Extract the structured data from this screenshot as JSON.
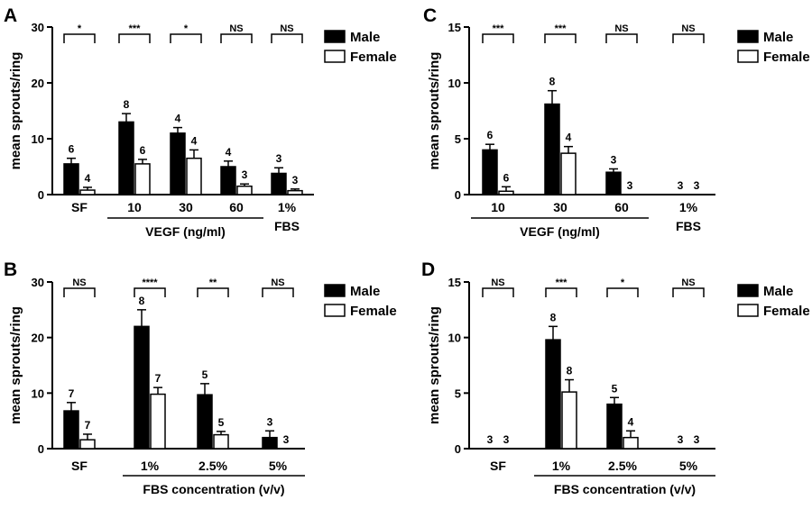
{
  "chart_data": [
    {
      "panel": "A",
      "type": "bar",
      "ylabel": "mean sprouts/ring",
      "ylim": [
        0,
        30
      ],
      "yticks": [
        "0",
        "10",
        "20",
        "30"
      ],
      "categories": [
        "SF",
        "10",
        "30",
        "60",
        "1%"
      ],
      "category_lines2": [
        "",
        "",
        "",
        "",
        "FBS"
      ],
      "group_label": "VEGF (ng/ml)",
      "group_span": [
        1,
        3
      ],
      "legend": [
        "Male",
        "Female"
      ],
      "series": [
        {
          "name": "Male",
          "values": [
            5.5,
            13.0,
            11.0,
            5.0,
            3.8
          ],
          "errors": [
            1.0,
            1.5,
            1.0,
            1.0,
            1.0
          ],
          "n": [
            "6",
            "8",
            "4",
            "4",
            "3"
          ]
        },
        {
          "name": "Female",
          "values": [
            0.8,
            5.5,
            6.5,
            1.5,
            0.7
          ],
          "errors": [
            0.5,
            0.8,
            1.5,
            0.4,
            0.3
          ],
          "n": [
            "4",
            "6",
            "4",
            "3",
            "3"
          ]
        }
      ],
      "significance": [
        "*",
        "***",
        "*",
        "NS",
        "NS"
      ]
    },
    {
      "panel": "C",
      "type": "bar",
      "ylabel": "mean sprouts/ring",
      "ylim": [
        0,
        15
      ],
      "yticks": [
        "0",
        "5",
        "10",
        "15"
      ],
      "categories": [
        "10",
        "30",
        "60",
        "1%"
      ],
      "category_lines2": [
        "",
        "",
        "",
        "FBS"
      ],
      "group_label": "VEGF (ng/ml)",
      "group_span": [
        0,
        2
      ],
      "legend": [
        "Male",
        "Female"
      ],
      "series": [
        {
          "name": "Male",
          "values": [
            4.0,
            8.1,
            2.0,
            0
          ],
          "errors": [
            0.5,
            1.2,
            0.3,
            0
          ],
          "n": [
            "6",
            "8",
            "3",
            "3"
          ]
        },
        {
          "name": "Female",
          "values": [
            0.3,
            3.7,
            0,
            0
          ],
          "errors": [
            0.4,
            0.6,
            0,
            0
          ],
          "n": [
            "6",
            "4",
            "3",
            "3"
          ]
        }
      ],
      "significance": [
        "***",
        "***",
        "NS",
        "NS"
      ]
    },
    {
      "panel": "B",
      "type": "bar",
      "ylabel": "mean sprouts/ring",
      "ylim": [
        0,
        30
      ],
      "yticks": [
        "0",
        "10",
        "20",
        "30"
      ],
      "categories": [
        "SF",
        "1%",
        "2.5%",
        "5%"
      ],
      "category_lines2": [
        "",
        "",
        "",
        ""
      ],
      "group_label": "FBS concentration (v/v)",
      "group_span": [
        1,
        3
      ],
      "legend": [
        "Male",
        "Female"
      ],
      "series": [
        {
          "name": "Male",
          "values": [
            6.8,
            22.0,
            9.7,
            2.0
          ],
          "errors": [
            1.5,
            3.0,
            2.0,
            1.2
          ],
          "n": [
            "7",
            "8",
            "5",
            "3"
          ]
        },
        {
          "name": "Female",
          "values": [
            1.6,
            9.8,
            2.5,
            0
          ],
          "errors": [
            1.0,
            1.2,
            0.6,
            0
          ],
          "n": [
            "7",
            "7",
            "5",
            "3"
          ]
        }
      ],
      "significance": [
        "NS",
        "****",
        "**",
        "NS"
      ]
    },
    {
      "panel": "D",
      "type": "bar",
      "ylabel": "mean sprouts/ring",
      "ylim": [
        0,
        15
      ],
      "yticks": [
        "0",
        "5",
        "10",
        "15"
      ],
      "categories": [
        "SF",
        "1%",
        "2.5%",
        "5%"
      ],
      "category_lines2": [
        "",
        "",
        "",
        ""
      ],
      "group_label": "FBS concentration (v/v)",
      "group_span": [
        1,
        3
      ],
      "legend": [
        "Male",
        "Female"
      ],
      "series": [
        {
          "name": "Male",
          "values": [
            0,
            9.8,
            4.0,
            0
          ],
          "errors": [
            0,
            1.2,
            0.6,
            0
          ],
          "n": [
            "3",
            "8",
            "5",
            "3"
          ]
        },
        {
          "name": "Female",
          "values": [
            0,
            5.1,
            1.0,
            0
          ],
          "errors": [
            0,
            1.1,
            0.6,
            0
          ],
          "n": [
            "3",
            "8",
            "4",
            "3"
          ]
        }
      ],
      "significance": [
        "NS",
        "***",
        "*",
        "NS"
      ]
    }
  ]
}
